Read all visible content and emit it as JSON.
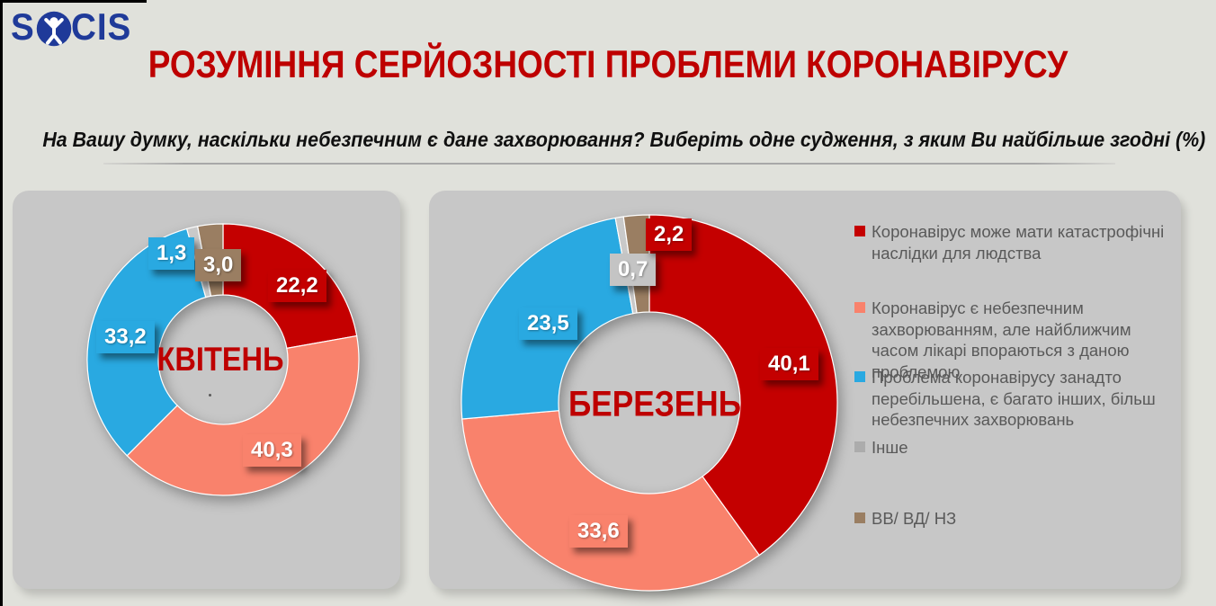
{
  "logo": {
    "text_start": "S",
    "text_end": "CIS",
    "icon": "person-in-circle-icon",
    "color": "#1F3A99"
  },
  "header": {
    "title": "РОЗУМІННЯ СЕРЙОЗНОСТІ ПРОБЛЕМИ КОРОНАВІРУСУ",
    "subtitle": "На Вашу думку, наскільки небезпечним є дане захворювання? Виберіть одне судження, з яким Ви найбільше згодні (%)"
  },
  "colors": {
    "background": "#E0E1DB",
    "panel": "#C7C7C7",
    "title_red": "#BE0000",
    "series_red": "#C40000",
    "series_salmon": "#F9826C",
    "series_blue": "#29A9E1",
    "series_gray": "#C9C9C9",
    "series_brown": "#9A7E62",
    "legend_text": "#595959"
  },
  "legend": {
    "items": [
      {
        "label": "Коронавірус може мати катастрофічні наслідки для людства",
        "color": "#C40000"
      },
      {
        "label": "Коронавірус є небезпечним захворюванням, але найближчим часом лікарі впораються з даною проблемою",
        "color": "#F9826C"
      },
      {
        "label": "Проблема коронавірусу занадто перебільшена, є багато інших, більш небезпечних захворювань",
        "color": "#29A9E1"
      },
      {
        "label": "Інше",
        "color": "#ACACAC"
      },
      {
        "label": "ВВ/ ВД/ НЗ",
        "color": "#9A7E62"
      }
    ]
  },
  "chart_data": [
    {
      "type": "pie",
      "variant": "donut",
      "center_label": "КВІТЕНЬ",
      "categories": [
        "Коронавірус може мати катастрофічні наслідки для людства",
        "Коронавірус є небезпечним захворюванням, але найближчим часом лікарі впораються з даною проблемою",
        "Проблема коронавірусу занадто перебільшена, є багато інших, більш небезпечних захворювань",
        "Інше",
        "ВВ/ ВД/ НЗ"
      ],
      "values": [
        22.2,
        40.3,
        33.2,
        1.3,
        3.0
      ],
      "display": [
        "22,2",
        "40,3",
        "33,2",
        "1,3",
        "3,0"
      ],
      "colors": [
        "#C40000",
        "#F9826C",
        "#29A9E1",
        "#C9C9C9",
        "#9A7E62"
      ],
      "label_colors": [
        "#C40000",
        "#F9826C",
        "#29A9E1",
        "#29A9E1",
        "#9A7E62"
      ],
      "start_angle_deg": 0,
      "direction": "clockwise"
    },
    {
      "type": "pie",
      "variant": "donut",
      "center_label": "БЕРЕЗЕНЬ",
      "categories": [
        "Коронавірус може мати катастрофічні наслідки для людства",
        "Коронавірус є небезпечним захворюванням, але найближчим часом лікарі впораються з даною проблемою",
        "Проблема коронавірусу занадто перебільшена, є багато інших, більш небезпечних захворювань",
        "Інше",
        "ВВ/ ВД/ НЗ"
      ],
      "values": [
        40.1,
        33.6,
        23.5,
        0.7,
        2.2
      ],
      "display": [
        "40,1",
        "33,6",
        "23,5",
        "0,7",
        "2,2"
      ],
      "colors": [
        "#C40000",
        "#F9826C",
        "#29A9E1",
        "#C9C9C9",
        "#9A7E62"
      ],
      "label_colors": [
        "#C40000",
        "#F9826C",
        "#29A9E1",
        "#C4C4C4",
        "#C40000"
      ],
      "start_angle_deg": 0,
      "direction": "clockwise"
    }
  ]
}
